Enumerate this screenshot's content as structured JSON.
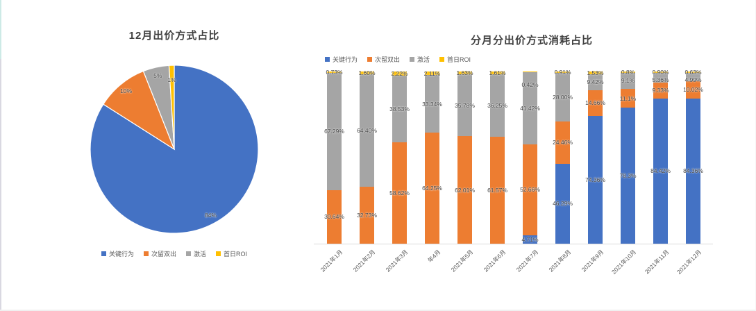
{
  "window": {
    "background": "#ffffff"
  },
  "accents": {
    "left_top_strip": "#cdeae6",
    "left_bottom_strip": "#d9d8e1",
    "bottom_edge": "#f0f0f0"
  },
  "text_colors": {
    "title": "#404040",
    "data_label": "#404040",
    "axis": "#595959",
    "legend": "#595959",
    "axis_line": "#D9D9D9"
  },
  "chart_data": [
    {
      "type": "pie",
      "title": "12月出价方式占比",
      "labels": [
        "关键行为",
        "次留双出",
        "激活",
        "首日ROI"
      ],
      "values": [
        84,
        10,
        5,
        1
      ],
      "value_labels": [
        "84%",
        "10%",
        "5%",
        "1%"
      ],
      "colors": [
        "#4472C4",
        "#ED7D31",
        "#A5A5A5",
        "#FFC000"
      ],
      "legend_position": "bottom",
      "start_angle_deg": 0,
      "direction": "clockwise",
      "label_dy": [
        0,
        0,
        0,
        9
      ]
    },
    {
      "type": "bar",
      "subtype": "100%-stacked-column",
      "title": "分月分出价方式消耗占比",
      "legend_position": "top-left",
      "gridlines": false,
      "y_axis_visible": false,
      "categories": [
        "2021年1月",
        "2021年2月",
        "2021年3月",
        "年4月",
        "2021年5月",
        "2021年6月",
        "2021年7月",
        "2021年8月",
        "2021年9月",
        "2021年10月",
        "2021年11月",
        "2021年12月"
      ],
      "series": [
        {
          "name": "关键行为",
          "color": "#4472C4",
          "values": [
            null,
            null,
            null,
            null,
            null,
            null,
            4.71,
            46.29,
            74.36,
            78.3,
            84.42,
            84.36
          ],
          "labels": [
            "",
            "",
            "",
            "",
            "",
            "",
            "4.71%",
            "46.29%",
            "74.36%",
            "78.3%",
            "84.42%",
            "84.36%"
          ],
          "label_dy": [
            0,
            0,
            0,
            0,
            0,
            0,
            0,
            0,
            0,
            0,
            0,
            0
          ]
        },
        {
          "name": "次留双出",
          "color": "#ED7D31",
          "values": [
            30.64,
            32.73,
            58.62,
            64.25,
            62.01,
            61.57,
            52.66,
            24.46,
            14.66,
            11.1,
            9.33,
            10.02
          ],
          "labels": [
            "30.64%",
            "32.73%",
            "58.62%",
            "64.25%",
            "62.01%",
            "61.57%",
            "52.66%",
            "24.46%",
            "14.66%",
            "11.1%",
            "9.33%",
            "10.02%"
          ],
          "label_dy": [
            0,
            0,
            0,
            0,
            0,
            0,
            0,
            0,
            0,
            0,
            0,
            0
          ]
        },
        {
          "name": "激活",
          "color": "#A5A5A5",
          "values": [
            67.29,
            64.4,
            38.53,
            33.34,
            35.78,
            36.25,
            41.42,
            28.0,
            9.42,
            9.1,
            5.36,
            4.99
          ],
          "labels": [
            "67.29%",
            "64.40%",
            "38.53%",
            "33.34%",
            "35.78%",
            "36.25%",
            "41.42%",
            "28.00%",
            "9.42%",
            "9.1%",
            "5.36%",
            "4.99%"
          ],
          "label_dy": [
            0,
            0,
            0,
            0,
            0,
            0,
            0,
            0,
            0,
            0,
            0,
            0
          ]
        },
        {
          "name": "首日ROI",
          "color": "#FFC000",
          "values": [
            0.73,
            1.6,
            2.22,
            2.11,
            1.63,
            1.61,
            0.42,
            0.91,
            1.53,
            0.8,
            0.9,
            0.63
          ],
          "labels": [
            "0.73%",
            "1.60%",
            "2.22%",
            "2.11%",
            "1.63%",
            "1.61%",
            "0.42%",
            "0.91%",
            "1.53%",
            "0.8%",
            "0.90%",
            "0.63%"
          ],
          "label_dy": [
            0,
            0,
            0,
            0,
            0,
            0,
            18,
            0,
            0,
            0,
            0,
            0
          ]
        }
      ]
    }
  ]
}
